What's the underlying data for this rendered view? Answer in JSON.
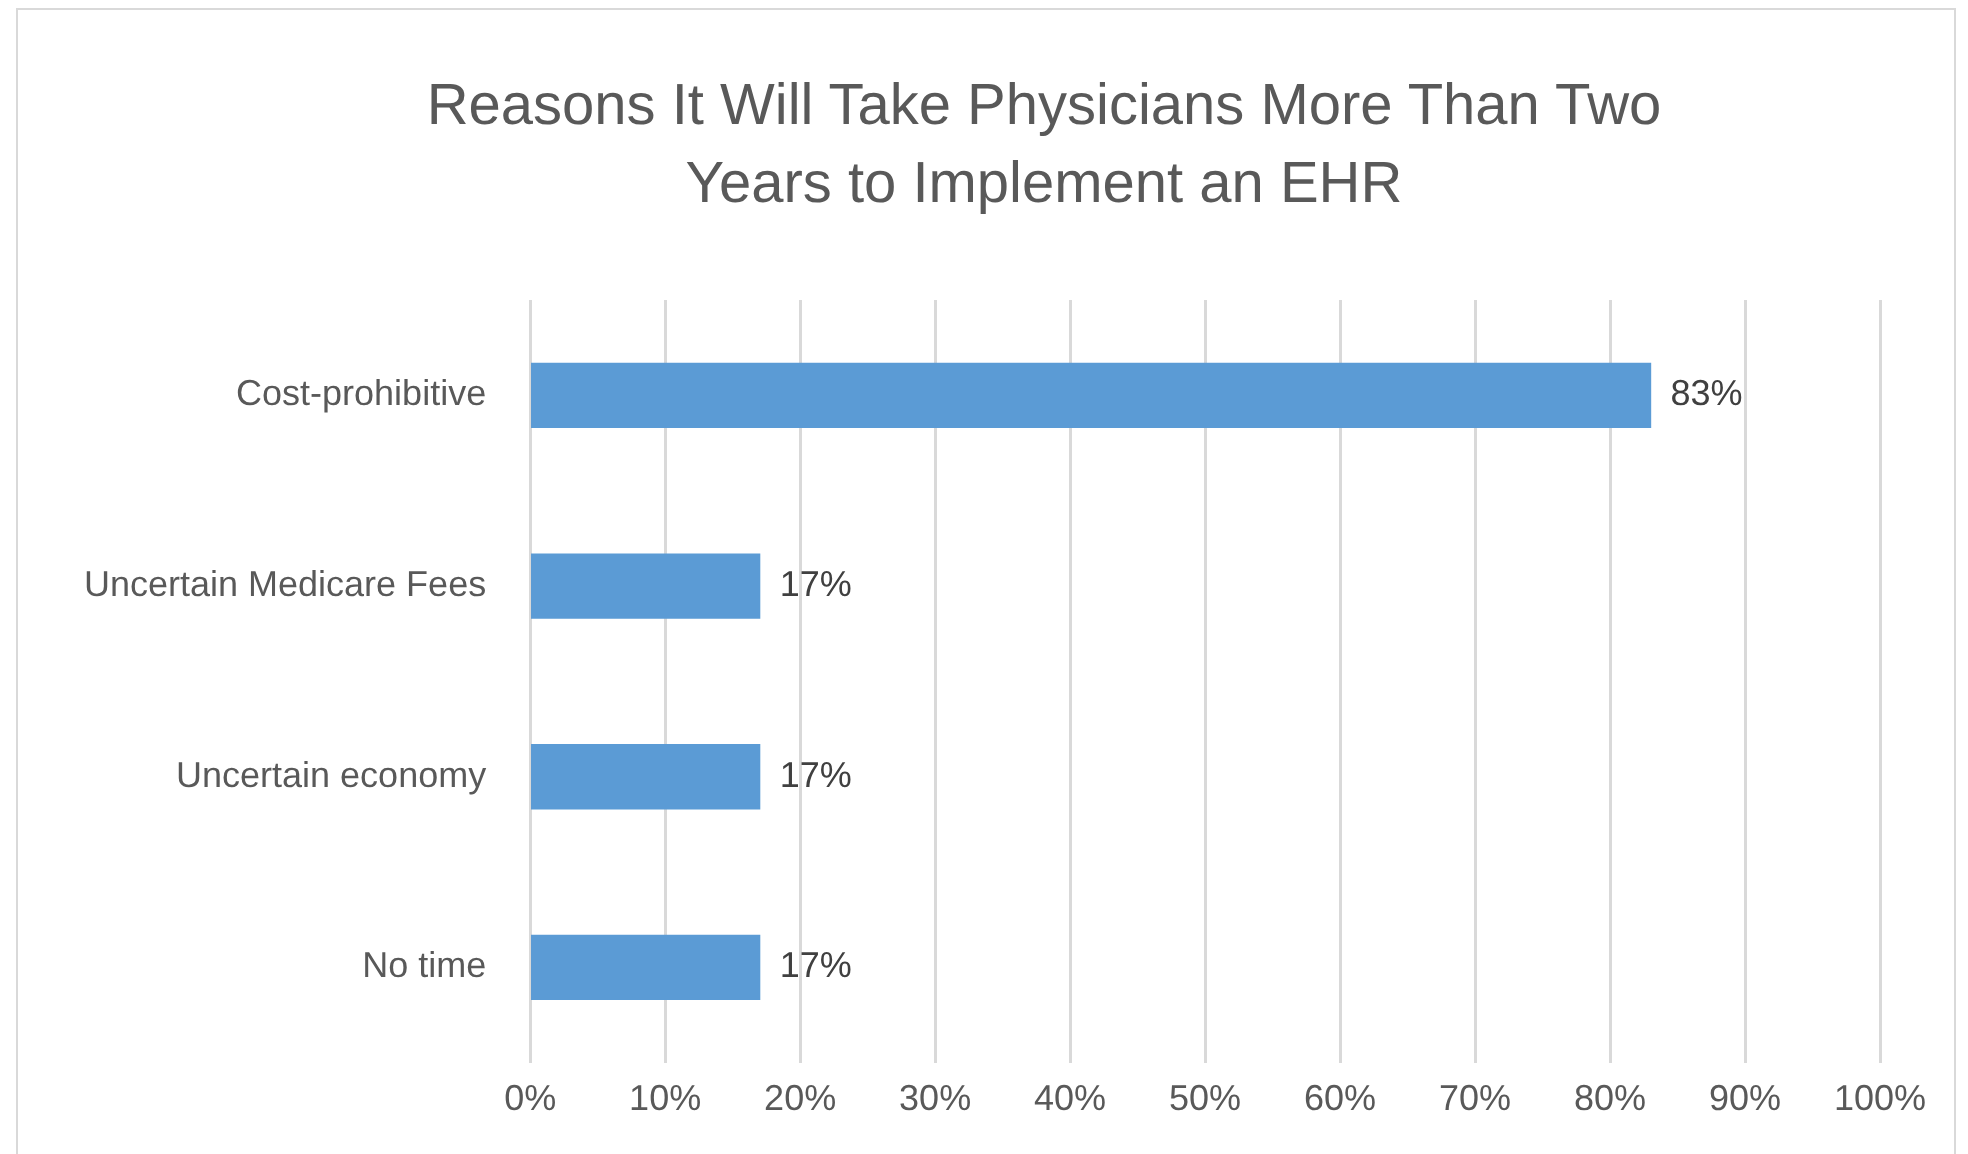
{
  "chart_data": {
    "type": "bar",
    "orientation": "horizontal",
    "title": "Reasons It Will Take Physicians More Than Two Years to Implement an EHR",
    "categories": [
      "Cost-prohibitive",
      "Uncertain Medicare Fees",
      "Uncertain economy",
      "No time"
    ],
    "values": [
      83,
      17,
      17,
      17
    ],
    "color": "#5b9bd5",
    "value_labels": [
      "83%",
      "17%",
      "17%",
      "17%"
    ],
    "xlim": [
      0,
      100
    ],
    "xticks": [
      {
        "value": 0,
        "label": "0%"
      },
      {
        "value": 10,
        "label": "10%"
      },
      {
        "value": 20,
        "label": "20%"
      },
      {
        "value": 30,
        "label": "30%"
      },
      {
        "value": 40,
        "label": "40%"
      },
      {
        "value": 50,
        "label": "50%"
      },
      {
        "value": 60,
        "label": "60%"
      },
      {
        "value": 70,
        "label": "70%"
      },
      {
        "value": 80,
        "label": "80%"
      },
      {
        "value": 90,
        "label": "90%"
      },
      {
        "value": 100,
        "label": "100%"
      }
    ],
    "grid": "x",
    "legend": false
  }
}
